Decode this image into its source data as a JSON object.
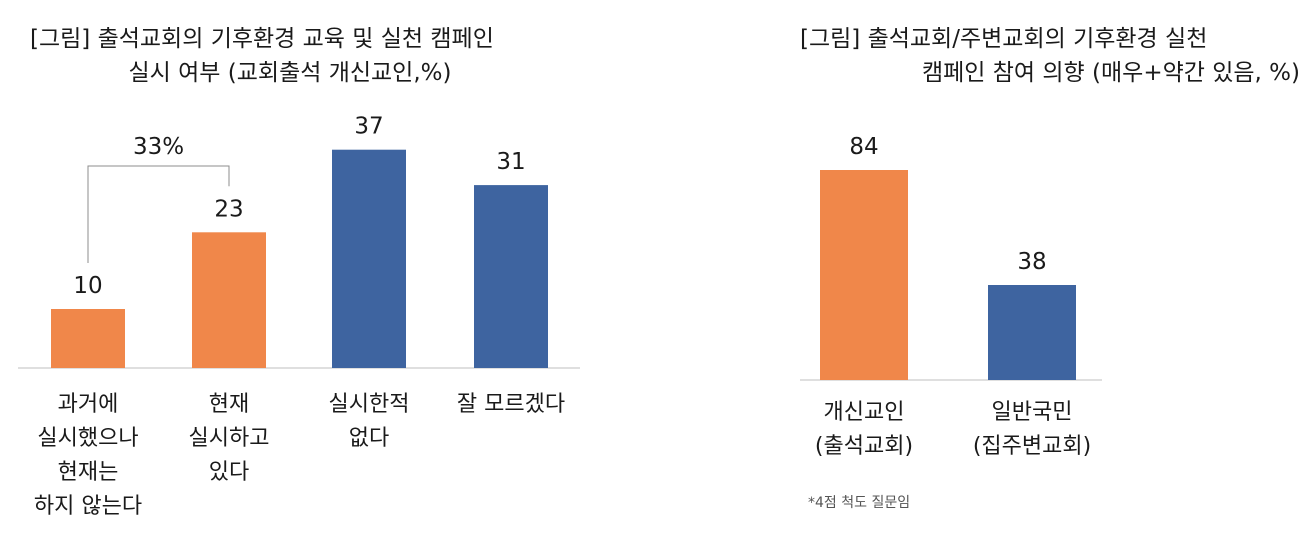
{
  "chart_data": [
    {
      "type": "bar",
      "title_lines": [
        "[그림] 출석교회의 기후환경 교육 및 실천 캠페인",
        "실시 여부 (교회출석 개신교인,%)"
      ],
      "categories": [
        [
          "과거에",
          "실시했으나",
          "현재는",
          "하지 않는다"
        ],
        [
          "현재",
          "실시하고",
          "있다"
        ],
        [
          "실시한적",
          "없다"
        ],
        [
          "잘 모르겠다"
        ]
      ],
      "values": [
        10,
        23,
        37,
        31
      ],
      "value_labels": [
        "10",
        "23",
        "37",
        "31"
      ],
      "colors": [
        "#F0874A",
        "#F0874A",
        "#3E64A0",
        "#3E64A0"
      ],
      "bracket_label": "33%",
      "ylim": [
        0,
        40
      ]
    },
    {
      "type": "bar",
      "title_lines": [
        "[그림] 출석교회/주변교회의 기후환경 실천",
        "캠페인 참여 의향 (매우+약간 있음, %)"
      ],
      "categories": [
        [
          "개신교인",
          "(출석교회)"
        ],
        [
          "일반국민",
          "(집주변교회)"
        ]
      ],
      "values": [
        84,
        38
      ],
      "value_labels": [
        "84",
        "38"
      ],
      "colors": [
        "#F0874A",
        "#3E64A0"
      ],
      "ylim": [
        0,
        90
      ],
      "footnote": "*4점 척도 질문임"
    }
  ]
}
